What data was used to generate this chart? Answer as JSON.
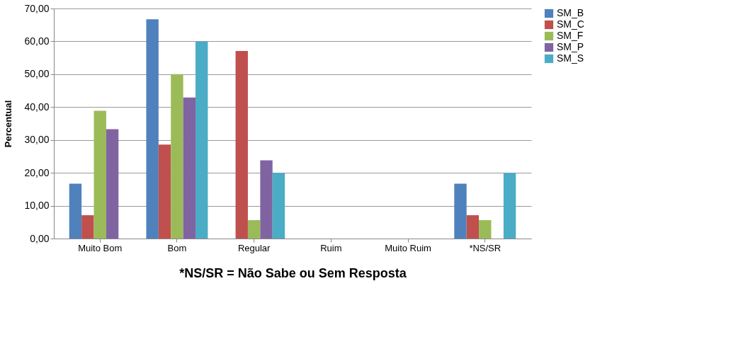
{
  "chart_data": {
    "type": "bar",
    "xlabel": "*NS/SR = Não Sabe ou Sem Resposta",
    "ylabel": "Percentual",
    "categories": [
      "Muito Bom",
      "Bom",
      "Regular",
      "Ruim",
      "Muito Ruim",
      "*NS/SR"
    ],
    "series": [
      {
        "name": "SM_B",
        "color": "#4f81bd",
        "values": [
          16.7,
          66.7,
          0,
          0,
          0,
          16.7
        ]
      },
      {
        "name": "SM_C",
        "color": "#c0504d",
        "values": [
          7.1,
          28.6,
          57.1,
          0,
          0,
          7.1
        ]
      },
      {
        "name": "SM_F",
        "color": "#9bbb59",
        "values": [
          38.9,
          50,
          5.6,
          0,
          0,
          5.6
        ]
      },
      {
        "name": "SM_P",
        "color": "#8064a2",
        "values": [
          33.3,
          42.9,
          23.8,
          0,
          0,
          0
        ]
      },
      {
        "name": "SM_S",
        "color": "#4bacc6",
        "values": [
          0,
          60,
          20,
          0,
          0,
          20
        ]
      }
    ],
    "ylim": [
      0,
      70
    ],
    "yticks": [
      {
        "value": 0,
        "label": "0,00"
      },
      {
        "value": 10,
        "label": "10,00"
      },
      {
        "value": 20,
        "label": "20,00"
      },
      {
        "value": 30,
        "label": "30,00"
      },
      {
        "value": 40,
        "label": "40,00"
      },
      {
        "value": 50,
        "label": "50,00"
      },
      {
        "value": 60,
        "label": "60,00"
      },
      {
        "value": 70,
        "label": "70,00"
      }
    ],
    "grid": "y",
    "legend": "right"
  }
}
